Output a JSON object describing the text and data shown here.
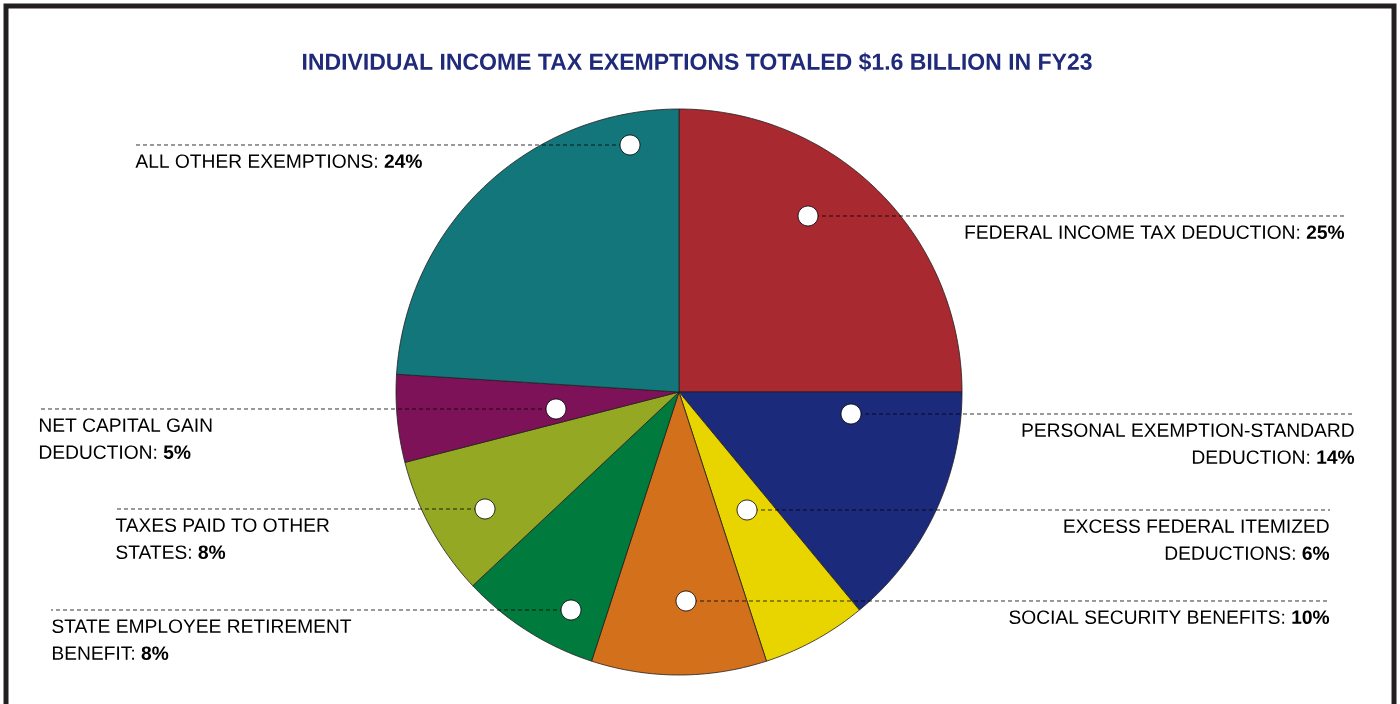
{
  "chart_data": {
    "type": "pie",
    "title": "INDIVIDUAL INCOME TAX EXEMPTIONS TOTALED $1.6 BILLION IN FY23",
    "categories": [
      "FEDERAL INCOME TAX DEDUCTION: **25%**",
      "PERSONAL EXEMPTION-STANDARD DEDUCTION: **14%**",
      "EXCESS FEDERAL ITEMIZED DEDUCTIONS: **6%**",
      "SOCIAL SECURITY BENEFITS: **10%**",
      "STATE EMPLOYEE RETIREMENT BENEFIT: **8%**",
      "TAXES PAID TO OTHER STATES: **8%**",
      "NET CAPITAL GAIN DEDUCTION: **5%**",
      "ALL OTHER EXEMPTIONS: **24%**"
    ],
    "values": [
      25,
      14,
      6,
      10,
      8,
      8,
      5,
      24
    ],
    "colors": [
      "#a8292f",
      "#1b2a7a",
      "#e8d500",
      "#d2701c",
      "#007a3d",
      "#94a824",
      "#7e1258",
      "#12767b"
    ]
  }
}
